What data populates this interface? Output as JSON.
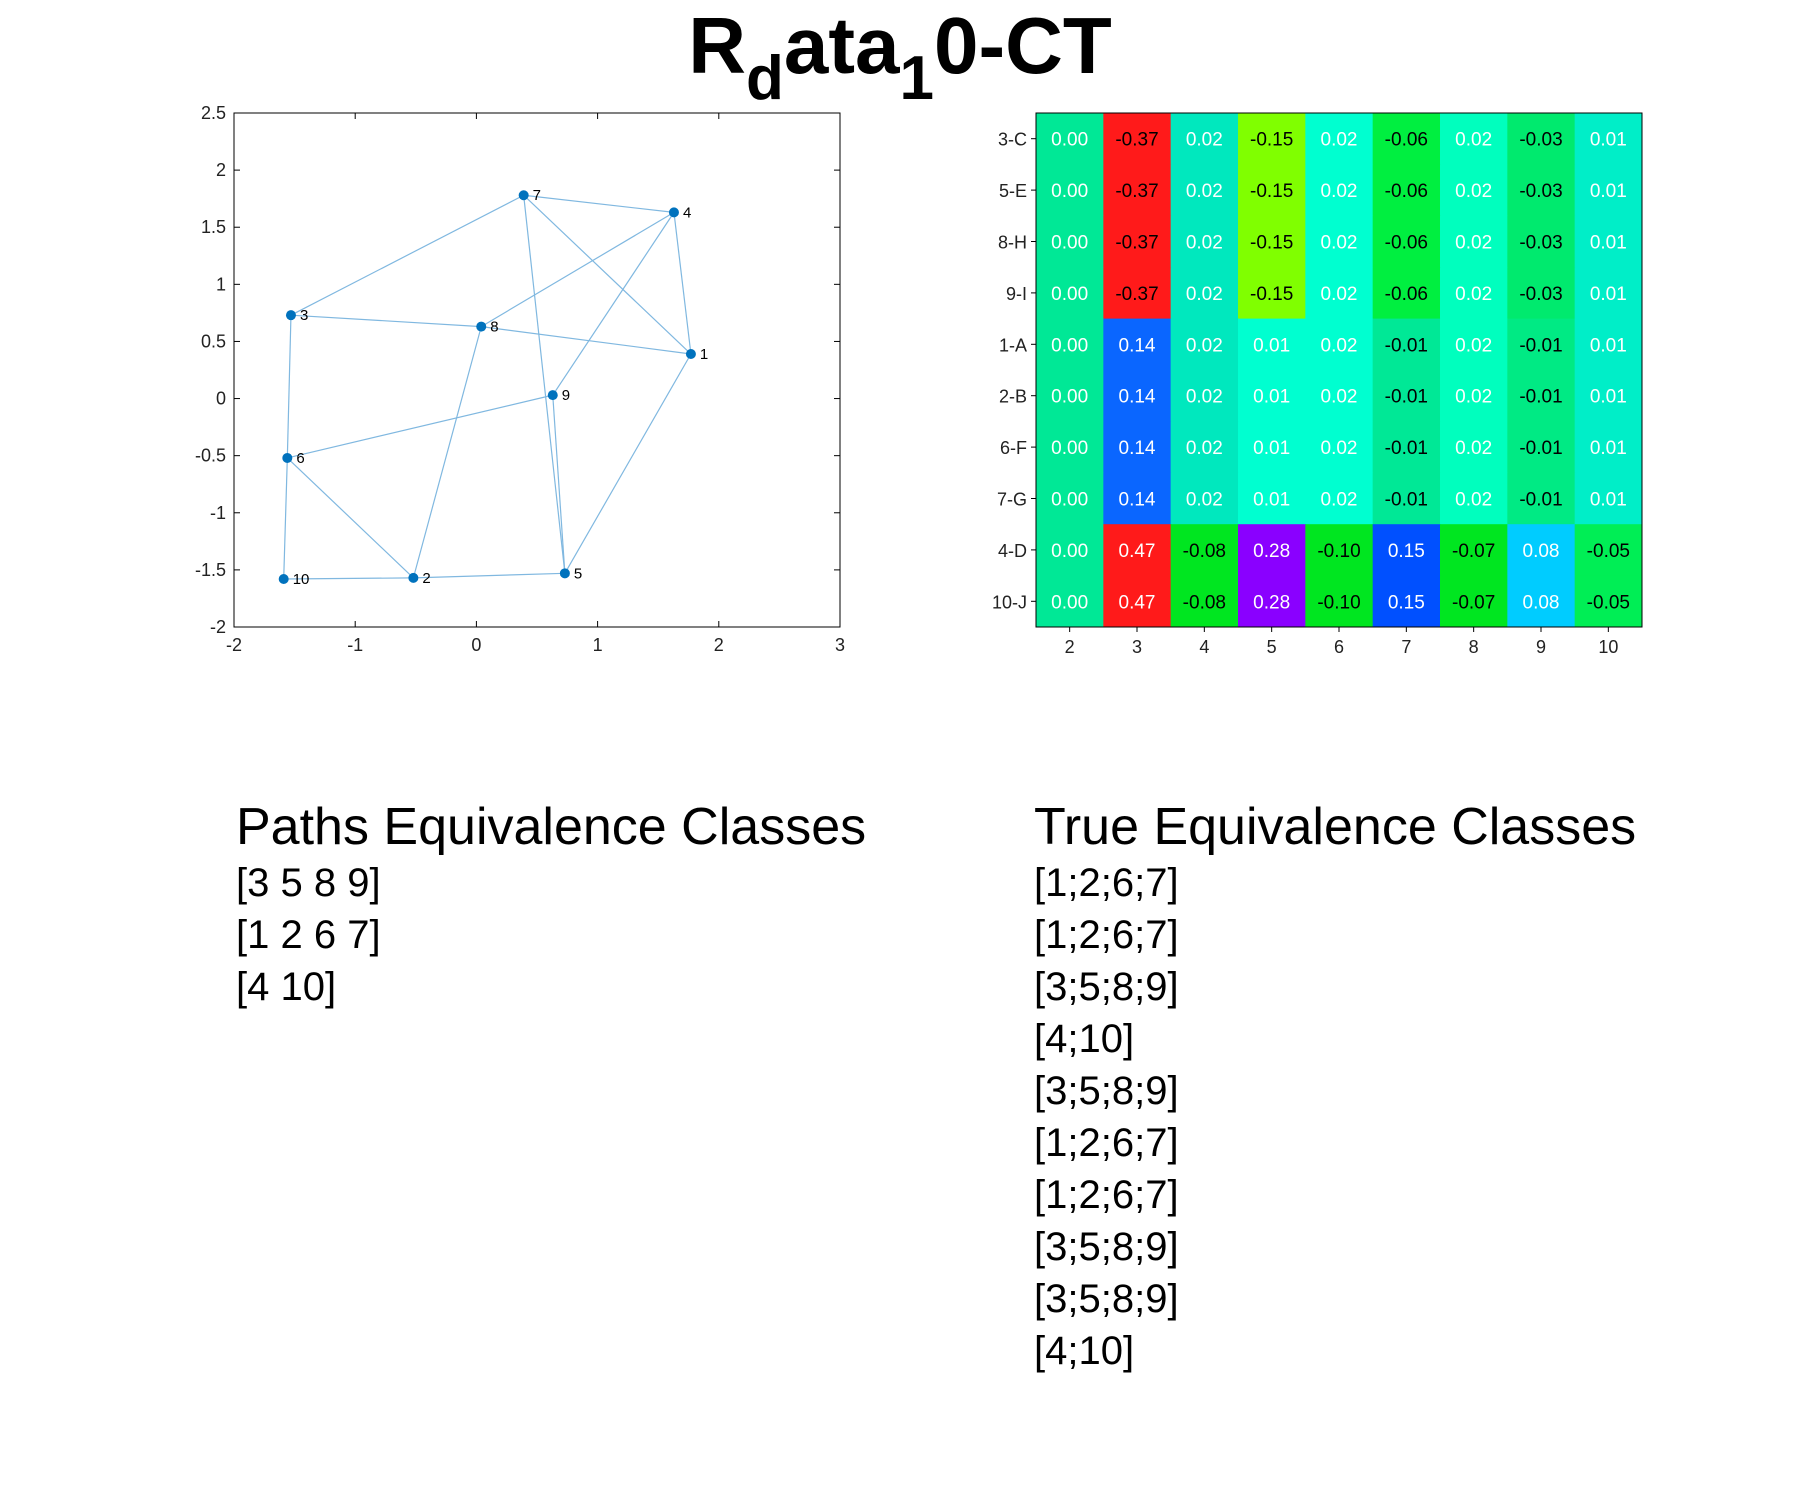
{
  "title": {
    "main": "R",
    "sub1": "d",
    "mid": "ata",
    "sub2": "1",
    "end": "0-CT"
  },
  "colors": {
    "node": "#0072bd",
    "edge": "#80b8e0",
    "axis": "#000000"
  },
  "chart_data": [
    {
      "type": "scatter",
      "title": "",
      "xlabel": "",
      "ylabel": "",
      "xlim": [
        -2,
        3
      ],
      "ylim": [
        -2,
        2.5
      ],
      "xticks": [
        "-2",
        "-1",
        "0",
        "1",
        "2",
        "3"
      ],
      "yticks": [
        "-2",
        "-1.5",
        "-1",
        "-0.5",
        "0",
        "0.5",
        "1",
        "1.5",
        "2",
        "2.5"
      ],
      "xtick_values": [
        -2,
        -1,
        0,
        1,
        2,
        3
      ],
      "ytick_values": [
        -2,
        -1.5,
        -1,
        -0.5,
        0,
        0.5,
        1,
        1.5,
        2,
        2.5
      ],
      "grid": false,
      "nodes": [
        {
          "label": "1",
          "x": 1.77,
          "y": 0.39
        },
        {
          "label": "2",
          "x": -0.52,
          "y": -1.57
        },
        {
          "label": "3",
          "x": -1.53,
          "y": 0.73
        },
        {
          "label": "4",
          "x": 1.63,
          "y": 1.63
        },
        {
          "label": "5",
          "x": 0.73,
          "y": -1.53
        },
        {
          "label": "6",
          "x": -1.56,
          "y": -0.52
        },
        {
          "label": "7",
          "x": 0.39,
          "y": 1.78
        },
        {
          "label": "8",
          "x": 0.04,
          "y": 0.63
        },
        {
          "label": "9",
          "x": 0.63,
          "y": 0.03
        },
        {
          "label": "10",
          "x": -1.59,
          "y": -1.58
        }
      ],
      "edges": [
        [
          "7",
          "3"
        ],
        [
          "7",
          "4"
        ],
        [
          "7",
          "1"
        ],
        [
          "7",
          "5"
        ],
        [
          "4",
          "1"
        ],
        [
          "4",
          "8"
        ],
        [
          "4",
          "9"
        ],
        [
          "3",
          "8"
        ],
        [
          "3",
          "6"
        ],
        [
          "8",
          "1"
        ],
        [
          "8",
          "2"
        ],
        [
          "9",
          "6"
        ],
        [
          "9",
          "5"
        ],
        [
          "1",
          "5"
        ],
        [
          "6",
          "10"
        ],
        [
          "6",
          "2"
        ],
        [
          "10",
          "2"
        ],
        [
          "2",
          "5"
        ]
      ]
    },
    {
      "type": "heatmap",
      "title": "",
      "xlabel": "",
      "ylabel": "",
      "columns": [
        "2",
        "3",
        "4",
        "5",
        "6",
        "7",
        "8",
        "9",
        "10"
      ],
      "rows": [
        "3-C",
        "5-E",
        "8-H",
        "9-I",
        "1-A",
        "2-B",
        "6-F",
        "7-G",
        "4-D",
        "10-J"
      ],
      "values": [
        [
          "0.00",
          "-0.37",
          "0.02",
          "-0.15",
          "0.02",
          "-0.06",
          "0.02",
          "-0.03",
          "0.01"
        ],
        [
          "0.00",
          "-0.37",
          "0.02",
          "-0.15",
          "0.02",
          "-0.06",
          "0.02",
          "-0.03",
          "0.01"
        ],
        [
          "0.00",
          "-0.37",
          "0.02",
          "-0.15",
          "0.02",
          "-0.06",
          "0.02",
          "-0.03",
          "0.01"
        ],
        [
          "0.00",
          "-0.37",
          "0.02",
          "-0.15",
          "0.02",
          "-0.06",
          "0.02",
          "-0.03",
          "0.01"
        ],
        [
          "0.00",
          "0.14",
          "0.02",
          "0.01",
          "0.02",
          "-0.01",
          "0.02",
          "-0.01",
          "0.01"
        ],
        [
          "0.00",
          "0.14",
          "0.02",
          "0.01",
          "0.02",
          "-0.01",
          "0.02",
          "-0.01",
          "0.01"
        ],
        [
          "0.00",
          "0.14",
          "0.02",
          "0.01",
          "0.02",
          "-0.01",
          "0.02",
          "-0.01",
          "0.01"
        ],
        [
          "0.00",
          "0.14",
          "0.02",
          "0.01",
          "0.02",
          "-0.01",
          "0.02",
          "-0.01",
          "0.01"
        ],
        [
          "0.00",
          "0.47",
          "-0.08",
          "0.28",
          "-0.10",
          "0.15",
          "-0.07",
          "0.08",
          "-0.05"
        ],
        [
          "0.00",
          "0.47",
          "-0.08",
          "0.28",
          "-0.10",
          "0.15",
          "-0.07",
          "0.08",
          "-0.05"
        ]
      ],
      "cell_colors": [
        [
          "#00e896",
          "#ff1a1a",
          "#00e8be",
          "#80ff00",
          "#00ffd0",
          "#00ef40",
          "#00ffbe",
          "#00ea6e",
          "#00eec8"
        ],
        [
          "#00e896",
          "#ff1a1a",
          "#00e8be",
          "#80ff00",
          "#00ffd0",
          "#00ef40",
          "#00ffbe",
          "#00ea6e",
          "#00eec8"
        ],
        [
          "#00e896",
          "#ff1a1a",
          "#00e8be",
          "#80ff00",
          "#00ffd0",
          "#00ef40",
          "#00ffbe",
          "#00ea6e",
          "#00eec8"
        ],
        [
          "#00e896",
          "#ff1a1a",
          "#00e8be",
          "#80ff00",
          "#00ffd0",
          "#00ef40",
          "#00ffbe",
          "#00ea6e",
          "#00eec8"
        ],
        [
          "#00e896",
          "#0a66ff",
          "#00e8be",
          "#00ffd0",
          "#00ffd0",
          "#00e896",
          "#00ffbe",
          "#00ea84",
          "#00eec8"
        ],
        [
          "#00e896",
          "#0a66ff",
          "#00e8be",
          "#00ffd0",
          "#00ffd0",
          "#00e896",
          "#00ffbe",
          "#00ea84",
          "#00eec8"
        ],
        [
          "#00e896",
          "#0a66ff",
          "#00e8be",
          "#00ffd0",
          "#00ffd0",
          "#00e896",
          "#00ffbe",
          "#00ea84",
          "#00eec8"
        ],
        [
          "#00e896",
          "#0a66ff",
          "#00e8be",
          "#00ffd0",
          "#00ffd0",
          "#00e896",
          "#00ffbe",
          "#00ea84",
          "#00eec8"
        ],
        [
          "#00e896",
          "#ff1a1a",
          "#00e620",
          "#8a00ff",
          "#00e620",
          "#0050ff",
          "#00e620",
          "#00ccff",
          "#00ee55"
        ],
        [
          "#00e896",
          "#ff1a1a",
          "#00e620",
          "#8a00ff",
          "#00e620",
          "#0050ff",
          "#00e620",
          "#00ccff",
          "#00ee55"
        ]
      ],
      "text_colors": [
        [
          "#ffffff",
          "#000000",
          "#ffffff",
          "#000000",
          "#ffffff",
          "#000000",
          "#ffffff",
          "#000000",
          "#ffffff"
        ],
        [
          "#ffffff",
          "#000000",
          "#ffffff",
          "#000000",
          "#ffffff",
          "#000000",
          "#ffffff",
          "#000000",
          "#ffffff"
        ],
        [
          "#ffffff",
          "#000000",
          "#ffffff",
          "#000000",
          "#ffffff",
          "#000000",
          "#ffffff",
          "#000000",
          "#ffffff"
        ],
        [
          "#ffffff",
          "#000000",
          "#ffffff",
          "#000000",
          "#ffffff",
          "#000000",
          "#ffffff",
          "#000000",
          "#ffffff"
        ],
        [
          "#ffffff",
          "#ffffff",
          "#ffffff",
          "#ffffff",
          "#ffffff",
          "#000000",
          "#ffffff",
          "#000000",
          "#ffffff"
        ],
        [
          "#ffffff",
          "#ffffff",
          "#ffffff",
          "#ffffff",
          "#ffffff",
          "#000000",
          "#ffffff",
          "#000000",
          "#ffffff"
        ],
        [
          "#ffffff",
          "#ffffff",
          "#ffffff",
          "#ffffff",
          "#ffffff",
          "#000000",
          "#ffffff",
          "#000000",
          "#ffffff"
        ],
        [
          "#ffffff",
          "#ffffff",
          "#ffffff",
          "#ffffff",
          "#ffffff",
          "#000000",
          "#ffffff",
          "#000000",
          "#ffffff"
        ],
        [
          "#ffffff",
          "#ffffff",
          "#000000",
          "#ffffff",
          "#000000",
          "#ffffff",
          "#000000",
          "#ffffff",
          "#000000"
        ],
        [
          "#ffffff",
          "#ffffff",
          "#000000",
          "#ffffff",
          "#000000",
          "#ffffff",
          "#000000",
          "#ffffff",
          "#000000"
        ]
      ]
    }
  ],
  "paths_classes": {
    "heading": "Paths Equivalence Classes",
    "items": [
      "[3 5 8 9]",
      "[1 2 6 7]",
      "[4 10]"
    ]
  },
  "true_classes": {
    "heading": "True Equivalence Classes",
    "items": [
      "[1;2;6;7]",
      "[1;2;6;7]",
      "[3;5;8;9]",
      "[4;10]",
      "[3;5;8;9]",
      "[1;2;6;7]",
      "[1;2;6;7]",
      "[3;5;8;9]",
      "[3;5;8;9]",
      "[4;10]"
    ]
  }
}
